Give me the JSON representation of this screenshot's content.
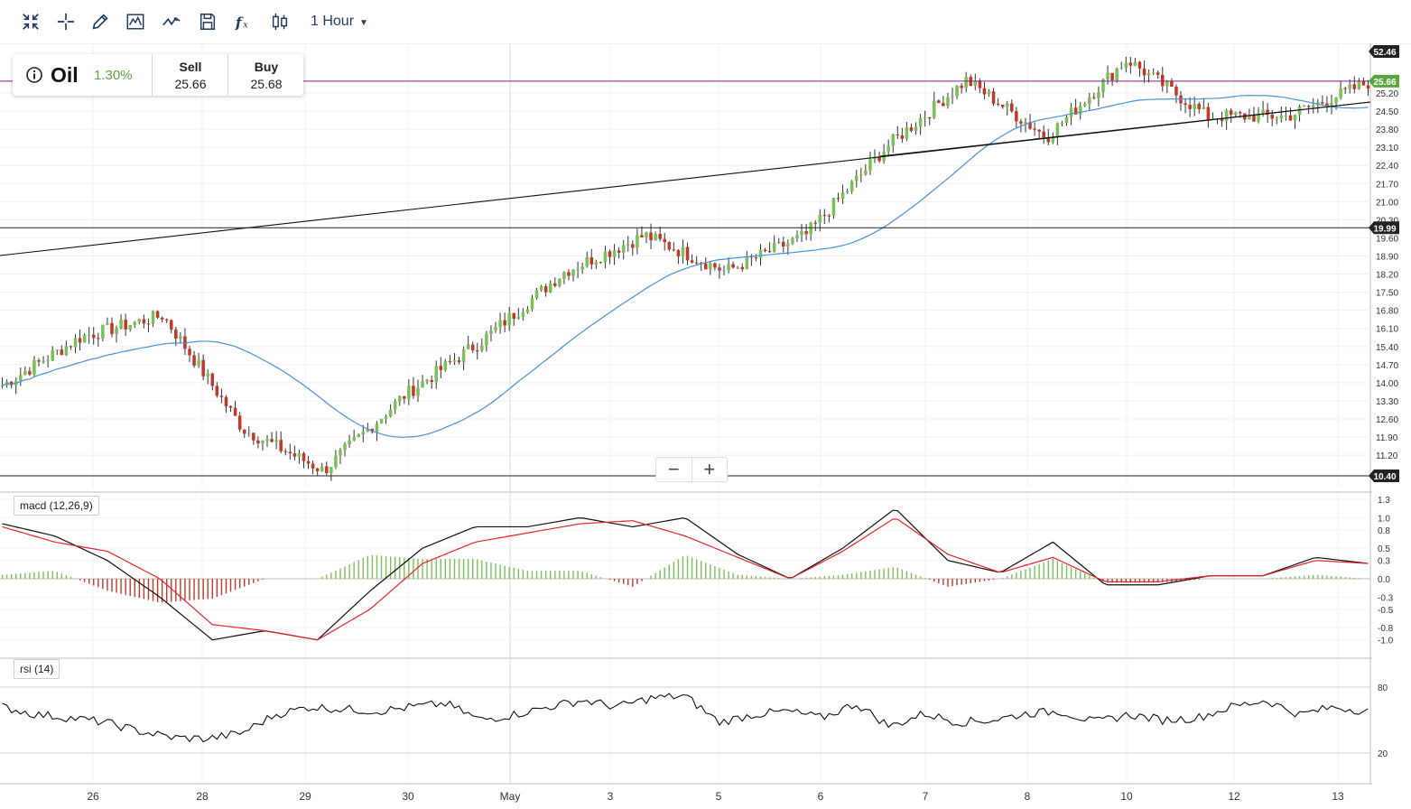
{
  "toolbar": {
    "tools": [
      {
        "name": "fullscreen-icon"
      },
      {
        "name": "crosshair-icon"
      },
      {
        "name": "draw-icon"
      },
      {
        "name": "chart-type-icon"
      },
      {
        "name": "indicators-icon"
      },
      {
        "name": "save-icon"
      },
      {
        "name": "function-icon"
      },
      {
        "name": "compare-icon"
      }
    ],
    "interval": "1 Hour"
  },
  "quote": {
    "symbol": "Oil",
    "change": "1.30%",
    "sell_label": "Sell",
    "sell_value": "25.66",
    "buy_label": "Buy",
    "buy_value": "25.68"
  },
  "price_axis": {
    "ticks": [
      "25.20",
      "24.50",
      "23.80",
      "23.10",
      "22.40",
      "21.70",
      "21.00",
      "20.30",
      "19.60",
      "18.90",
      "18.20",
      "17.50",
      "16.80",
      "16.10",
      "15.40",
      "14.70",
      "14.00",
      "13.30",
      "12.60",
      "11.90",
      "11.20"
    ],
    "badges": [
      {
        "label": "52.46",
        "color": "#222222"
      },
      {
        "label": "25.66",
        "color": "#5aa63f"
      },
      {
        "label": "19.99",
        "color": "#222222"
      },
      {
        "label": "10.40",
        "color": "#222222"
      }
    ]
  },
  "time_axis": {
    "labels": [
      "26",
      "28",
      "29",
      "30",
      "May",
      "3",
      "5",
      "6",
      "7",
      "8",
      "10",
      "12",
      "13"
    ]
  },
  "macd": {
    "label": "macd (12,26,9)",
    "ticks": [
      "1.3",
      "1.0",
      "0.8",
      "0.5",
      "0.3",
      "0.0",
      "-0.3",
      "-0.5",
      "-0.8",
      "-1.0"
    ]
  },
  "rsi": {
    "label": "rsi (14)",
    "ticks": [
      "80",
      "20"
    ]
  },
  "colors": {
    "up": "#7cc05a",
    "down": "#c0392b",
    "ma": "#4a90d9",
    "macd_line": "#111111",
    "signal_line": "#e0262a",
    "resistance": "#8b1a8b"
  },
  "chart_data": {
    "type": "candlestick",
    "timeframe": "1 Hour",
    "x": [
      "26",
      "28",
      "29",
      "30",
      "May",
      "3",
      "5",
      "6",
      "7",
      "8",
      "10",
      "12",
      "13"
    ],
    "price_anchors": [
      13.9,
      15.8,
      16.6,
      12.2,
      10.6,
      13.5,
      15.7,
      18.3,
      19.7,
      18.3,
      19.7,
      23.1,
      25.7,
      23.5,
      26.5,
      24.3,
      24.3,
      25.6
    ],
    "horizontal_levels": [
      10.4,
      19.99,
      25.66
    ],
    "ylim": [
      10.2,
      26.6
    ],
    "macd": {
      "series": [
        {
          "name": "macd",
          "values": [
            0.9,
            0.7,
            0.3,
            -0.3,
            -1.0,
            -0.85,
            -1.0,
            -0.2,
            0.5,
            0.85,
            0.85,
            1.0,
            0.85,
            1.0,
            0.4,
            0.0,
            0.5,
            1.15,
            0.3,
            0.1,
            0.6,
            -0.1,
            -0.1,
            0.05,
            0.05,
            0.35,
            0.25
          ]
        },
        {
          "name": "signal",
          "values": [
            0.85,
            0.6,
            0.45,
            0.0,
            -0.75,
            -0.85,
            -1.0,
            -0.5,
            0.25,
            0.6,
            0.75,
            0.9,
            0.95,
            0.7,
            0.35,
            0.0,
            0.45,
            1.0,
            0.4,
            0.1,
            0.35,
            -0.05,
            -0.05,
            0.05,
            0.05,
            0.3,
            0.25
          ]
        }
      ],
      "ylim": [
        -1.3,
        1.35
      ]
    },
    "rsi": {
      "values": [
        62,
        55,
        52,
        48,
        40,
        34,
        33,
        38,
        55,
        62,
        60,
        58,
        62,
        65,
        50,
        55,
        62,
        68,
        62,
        70,
        72,
        48,
        55,
        58,
        52,
        65,
        44,
        56,
        48,
        50,
        56,
        58,
        48,
        55,
        50,
        52,
        62,
        68,
        55,
        62,
        58
      ]
    }
  }
}
